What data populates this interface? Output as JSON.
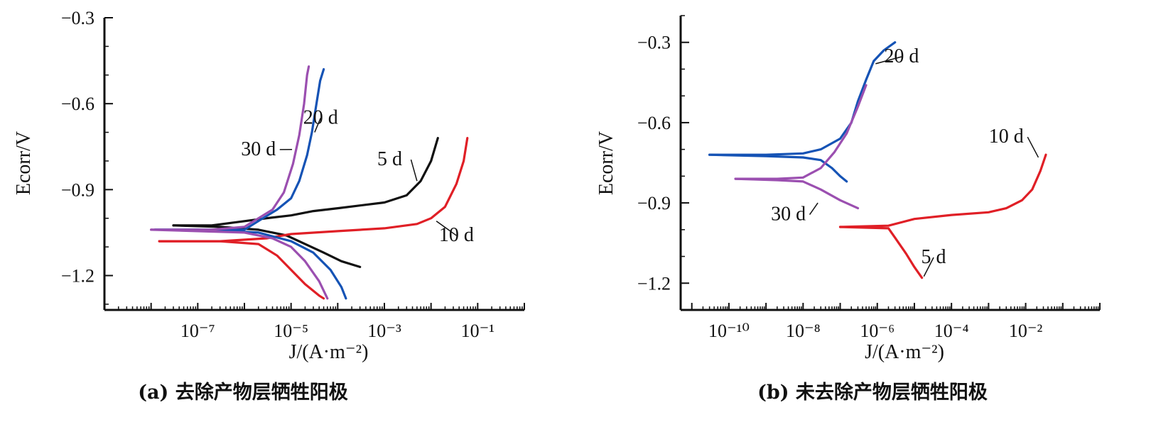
{
  "chart_data": [
    {
      "id": "a",
      "type": "line",
      "caption": "(a) 去除产物层牺牲阳极",
      "xlabel": "J/(A·m⁻²)",
      "ylabel": "Ecorr/V",
      "xscale": "log",
      "xlim": [
        1e-09,
        1
      ],
      "ylim": [
        -1.32,
        -0.3
      ],
      "yticks": [
        -0.3,
        -0.6,
        -0.9,
        -1.2
      ],
      "ytick_labels": [
        "−0.3",
        "−0.6",
        "−0.9",
        "−1.2"
      ],
      "xticks": [
        1e-07,
        1e-05,
        0.001,
        0.1
      ],
      "xtick_labels": [
        "10⁻⁷",
        "10⁻⁵",
        "10⁻³",
        "10⁻¹"
      ],
      "series": [
        {
          "name": "5 d",
          "color": "#111111",
          "anodic": [
            [
              3e-08,
              -1.025
            ],
            [
              2e-07,
              -1.025
            ],
            [
              1e-06,
              -1.01
            ],
            [
              3e-06,
              -1.0
            ],
            [
              1e-05,
              -0.99
            ],
            [
              3e-05,
              -0.975
            ],
            [
              0.0001,
              -0.965
            ],
            [
              0.001,
              -0.945
            ],
            [
              0.003,
              -0.92
            ],
            [
              0.006,
              -0.87
            ],
            [
              0.01,
              -0.8
            ],
            [
              0.014,
              -0.72
            ]
          ],
          "cathodic": [
            [
              3e-08,
              -1.025
            ],
            [
              3e-07,
              -1.03
            ],
            [
              2e-06,
              -1.04
            ],
            [
              8e-06,
              -1.06
            ],
            [
              2e-05,
              -1.09
            ],
            [
              5e-05,
              -1.12
            ],
            [
              0.00012,
              -1.15
            ],
            [
              0.0003,
              -1.17
            ]
          ]
        },
        {
          "name": "10 d",
          "color": "#e01f26",
          "anodic": [
            [
              1.5e-08,
              -1.08
            ],
            [
              3e-07,
              -1.08
            ],
            [
              3e-06,
              -1.07
            ],
            [
              1e-05,
              -1.055
            ],
            [
              0.0001,
              -1.045
            ],
            [
              0.001,
              -1.035
            ],
            [
              0.005,
              -1.02
            ],
            [
              0.01,
              -1.0
            ],
            [
              0.02,
              -0.96
            ],
            [
              0.035,
              -0.88
            ],
            [
              0.05,
              -0.8
            ],
            [
              0.06,
              -0.72
            ]
          ],
          "cathodic": [
            [
              1.5e-08,
              -1.08
            ],
            [
              3e-07,
              -1.08
            ],
            [
              2e-06,
              -1.09
            ],
            [
              5e-06,
              -1.13
            ],
            [
              1e-05,
              -1.18
            ],
            [
              2e-05,
              -1.23
            ],
            [
              4e-05,
              -1.27
            ],
            [
              5e-05,
              -1.28
            ]
          ]
        },
        {
          "name": "20 d",
          "color": "#1553b5",
          "anodic": [
            [
              1.2e-08,
              -1.04
            ],
            [
              1e-07,
              -1.04
            ],
            [
              1e-06,
              -1.04
            ],
            [
              2.5e-06,
              -1.0
            ],
            [
              5e-06,
              -0.97
            ],
            [
              1e-05,
              -0.93
            ],
            [
              1.5e-05,
              -0.87
            ],
            [
              2.2e-05,
              -0.78
            ],
            [
              2.8e-05,
              -0.7
            ],
            [
              3.5e-05,
              -0.6
            ],
            [
              4.2e-05,
              -0.52
            ],
            [
              5e-05,
              -0.48
            ]
          ],
          "cathodic": [
            [
              1.2e-08,
              -1.04
            ],
            [
              1e-07,
              -1.04
            ],
            [
              2e-06,
              -1.05
            ],
            [
              1e-05,
              -1.08
            ],
            [
              3e-05,
              -1.12
            ],
            [
              7e-05,
              -1.18
            ],
            [
              0.00012,
              -1.24
            ],
            [
              0.00015,
              -1.28
            ]
          ]
        },
        {
          "name": "30 d",
          "color": "#9b4fb0",
          "anodic": [
            [
              1e-08,
              -1.04
            ],
            [
              2e-07,
              -1.04
            ],
            [
              1e-06,
              -1.03
            ],
            [
              2e-06,
              -1.0
            ],
            [
              4e-06,
              -0.97
            ],
            [
              7e-06,
              -0.91
            ],
            [
              1.1e-05,
              -0.81
            ],
            [
              1.5e-05,
              -0.71
            ],
            [
              1.9e-05,
              -0.6
            ],
            [
              2.2e-05,
              -0.5
            ],
            [
              2.4e-05,
              -0.47
            ]
          ],
          "cathodic": [
            [
              1e-08,
              -1.04
            ],
            [
              1e-07,
              -1.045
            ],
            [
              1e-06,
              -1.05
            ],
            [
              4e-06,
              -1.07
            ],
            [
              1e-05,
              -1.1
            ],
            [
              2e-05,
              -1.15
            ],
            [
              4e-05,
              -1.22
            ],
            [
              6e-05,
              -1.28
            ]
          ]
        }
      ],
      "labels": [
        {
          "text": "30 d",
          "series": "30 d",
          "x": 2e-06,
          "y": -0.78,
          "ax": 1.05e-05,
          "ay": -0.76
        },
        {
          "text": "20 d",
          "series": "20 d",
          "x": 4.3e-05,
          "y": -0.67,
          "ax": 3.2e-05,
          "ay": -0.7
        },
        {
          "text": "5 d",
          "series": "5 d",
          "x": 0.0013,
          "y": -0.815,
          "ax": 0.005,
          "ay": -0.87
        },
        {
          "text": "10 d",
          "series": "10 d",
          "x": 0.035,
          "y": -1.08,
          "ax": 0.013,
          "ay": -1.01
        }
      ]
    },
    {
      "id": "b",
      "type": "line",
      "caption": "(b) 未去除产物层牺牲阳极",
      "xlabel": "J/(A·m⁻²)",
      "ylabel": "Ecorr/V",
      "xscale": "log",
      "xlim": [
        5e-12,
        1
      ],
      "ylim": [
        -1.3,
        -0.2
      ],
      "yticks": [
        -0.3,
        -0.6,
        -0.9,
        -1.2
      ],
      "ytick_labels": [
        "−0.3",
        "−0.6",
        "−0.9",
        "−1.2"
      ],
      "xticks": [
        1e-10,
        1e-08,
        1e-06,
        0.0001,
        0.01
      ],
      "xtick_labels": [
        "10⁻¹⁰",
        "10⁻⁸",
        "10⁻⁶",
        "10⁻⁴",
        "10⁻²"
      ],
      "series": [
        {
          "name": "20 d",
          "color": "#1553b5",
          "anodic": [
            [
              3e-11,
              -0.72
            ],
            [
              1e-09,
              -0.72
            ],
            [
              1e-08,
              -0.715
            ],
            [
              3e-08,
              -0.7
            ],
            [
              1e-07,
              -0.66
            ],
            [
              2e-07,
              -0.6
            ],
            [
              3e-07,
              -0.52
            ],
            [
              5e-07,
              -0.44
            ],
            [
              8e-07,
              -0.37
            ],
            [
              1.5e-06,
              -0.33
            ],
            [
              3e-06,
              -0.3
            ]
          ],
          "cathodic": [
            [
              3e-11,
              -0.72
            ],
            [
              1e-09,
              -0.725
            ],
            [
              1e-08,
              -0.73
            ],
            [
              3e-08,
              -0.74
            ],
            [
              6e-08,
              -0.77
            ],
            [
              1e-07,
              -0.8
            ],
            [
              1.5e-07,
              -0.82
            ]
          ]
        },
        {
          "name": "30 d",
          "color": "#9b4fb0",
          "anodic": [
            [
              1.5e-10,
              -0.81
            ],
            [
              2e-09,
              -0.81
            ],
            [
              1e-08,
              -0.805
            ],
            [
              3e-08,
              -0.77
            ],
            [
              7e-08,
              -0.71
            ],
            [
              1.5e-07,
              -0.64
            ],
            [
              3e-07,
              -0.54
            ],
            [
              5e-07,
              -0.46
            ]
          ],
          "cathodic": [
            [
              1.5e-10,
              -0.81
            ],
            [
              2e-09,
              -0.815
            ],
            [
              1e-08,
              -0.82
            ],
            [
              3e-08,
              -0.85
            ],
            [
              1e-07,
              -0.89
            ],
            [
              3e-07,
              -0.92
            ]
          ]
        },
        {
          "name": "10 d",
          "color": "#e01f26",
          "anodic": [
            [
              1e-07,
              -0.99
            ],
            [
              2e-06,
              -0.985
            ],
            [
              1e-05,
              -0.96
            ],
            [
              0.0001,
              -0.945
            ],
            [
              0.001,
              -0.935
            ],
            [
              0.003,
              -0.92
            ],
            [
              0.008,
              -0.89
            ],
            [
              0.015,
              -0.85
            ],
            [
              0.025,
              -0.78
            ],
            [
              0.035,
              -0.72
            ]
          ],
          "cathodic": [
            [
              1e-07,
              -0.99
            ],
            [
              2e-06,
              -0.995
            ],
            [
              3e-06,
              -1.03
            ],
            [
              6e-06,
              -1.09
            ],
            [
              1e-05,
              -1.14
            ],
            [
              1.6e-05,
              -1.18
            ]
          ]
        }
      ],
      "labels": [
        {
          "text": "20 d",
          "series": "20 d",
          "x": 4.5e-06,
          "y": -0.375,
          "ax": 9e-07,
          "ay": -0.38
        },
        {
          "text": "30 d",
          "series": "30 d",
          "x": 4e-09,
          "y": -0.965,
          "ax": 2.5e-08,
          "ay": -0.9
        },
        {
          "text": "10 d",
          "series": "10 d",
          "x": 0.003,
          "y": -0.675,
          "ax": 0.022,
          "ay": -0.73
        },
        {
          "text": "5 d",
          "series": "5 d",
          "x": 3.3e-05,
          "y": -1.125,
          "ax": 1.8e-05,
          "ay": -1.175
        }
      ]
    }
  ]
}
